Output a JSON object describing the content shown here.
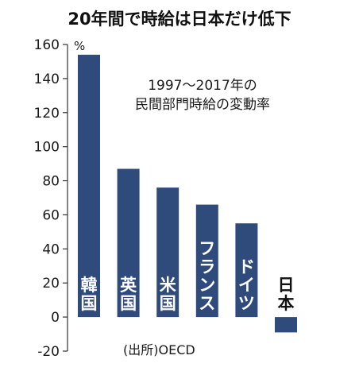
{
  "chart_data": {
    "type": "bar",
    "title": "20年間で時給は日本だけ低下",
    "subtitle_lines": [
      "1997～2017年の",
      "民間部門時給の変動率"
    ],
    "y_unit": "%",
    "source": "(出所)OECD",
    "categories": [
      "韓国",
      "英国",
      "米国",
      "フランス",
      "ドイツ",
      "日本"
    ],
    "values": [
      154,
      87,
      76,
      66,
      55,
      -9
    ],
    "ylim": [
      -20,
      160
    ],
    "yticks": [
      160,
      140,
      120,
      100,
      80,
      60,
      40,
      20,
      0,
      -20
    ],
    "grid": false,
    "legend": "none",
    "colors": {
      "bar": "#2e4b7c",
      "bar_label_inside": "#ffffff",
      "bar_label_outside": "#111111",
      "axis": "#333333"
    }
  }
}
